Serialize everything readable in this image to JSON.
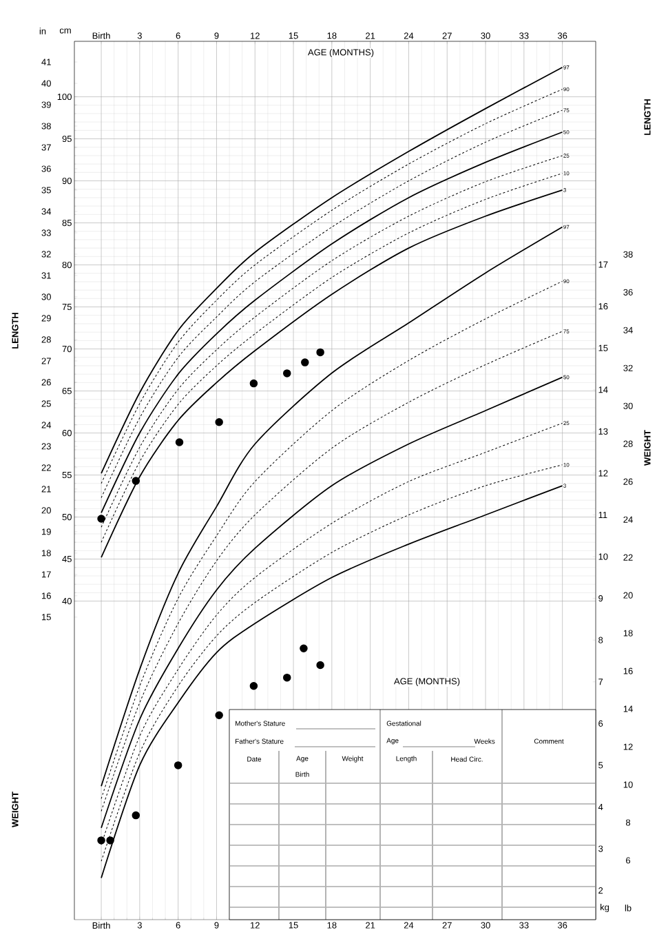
{
  "chart_data": {
    "type": "line",
    "xlabel": "AGE (MONTHS)",
    "ylabel": "LENGTH",
    "y2label": "WEIGHT",
    "x": [
      0,
      3,
      6,
      9,
      12,
      18,
      24,
      30,
      36
    ],
    "xlim": [
      -2.1,
      38.6
    ],
    "xticks": [
      {
        "value": 0,
        "label": "Birth"
      },
      3,
      6,
      9,
      12,
      15,
      18,
      21,
      24,
      27,
      30,
      33,
      36
    ],
    "x2lim": [
      -2.1,
      38.6
    ],
    "x2ticks": [
      {
        "value": 0,
        "label": "Birth"
      },
      3,
      6,
      9,
      12,
      15,
      18,
      21,
      24,
      27,
      30,
      33,
      36
    ],
    "ylim": [
      2.1,
      106.6
    ],
    "yticks": [
      40,
      45,
      50,
      55,
      60,
      65,
      70,
      75,
      80,
      85,
      90,
      95,
      100
    ],
    "y2lim": [
      1.3,
      22.35
    ],
    "y2ticks": [
      2,
      3,
      4,
      5,
      6,
      7,
      8,
      9,
      10,
      11,
      12,
      13,
      14,
      15,
      16,
      17
    ],
    "y3lim": [
      0.83,
      41.97
    ],
    "y3ticks": [
      15,
      16,
      17,
      18,
      19,
      20,
      21,
      22,
      23,
      24,
      25,
      26,
      27,
      28,
      29,
      30,
      31,
      32,
      33,
      34,
      35,
      36,
      37,
      38,
      39,
      40,
      41
    ],
    "grid": true,
    "series": [
      {
        "name": "97",
        "color": "#000000",
        "line_style": "solid",
        "values": [
          55.2,
          64.8,
          72.2,
          77.2,
          81.5,
          88.0,
          93.5,
          98.6,
          103.5
        ]
      },
      {
        "name": "90",
        "color": "#000000",
        "line_style": "dashed",
        "values": [
          54.0,
          63.5,
          70.8,
          75.8,
          80.0,
          86.5,
          92.0,
          96.8,
          100.9
        ]
      },
      {
        "name": "75",
        "color": "#000000",
        "line_style": "dashed",
        "values": [
          52.3,
          61.8,
          69.0,
          73.8,
          78.0,
          84.5,
          90.0,
          94.6,
          98.4
        ]
      },
      {
        "name": "50",
        "color": "#000000",
        "line_style": "solid",
        "values": [
          50.5,
          60.0,
          67.0,
          71.8,
          75.8,
          82.5,
          88.0,
          92.2,
          95.8
        ]
      },
      {
        "name": "25",
        "color": "#000000",
        "line_style": "dashed",
        "values": [
          48.8,
          58.3,
          65.2,
          69.9,
          73.8,
          80.5,
          85.8,
          89.9,
          93.0
        ]
      },
      {
        "name": "10",
        "color": "#000000",
        "line_style": "dashed",
        "values": [
          47.0,
          56.6,
          63.4,
          68.0,
          71.8,
          78.5,
          83.8,
          87.8,
          90.9
        ]
      },
      {
        "name": "3",
        "color": "#000000",
        "line_style": "solid",
        "values": [
          45.2,
          54.8,
          61.5,
          66.0,
          69.8,
          76.5,
          82.0,
          85.8,
          88.9
        ]
      },
      {
        "name": "97",
        "color": "#000000",
        "line_style": "solid",
        "axis": "y2",
        "values": [
          4.5,
          7.3,
          9.6,
          11.2,
          12.7,
          14.4,
          15.6,
          16.8,
          17.9
        ]
      },
      {
        "name": "90",
        "color": "#000000",
        "line_style": "dashed",
        "axis": "y2",
        "values": [
          4.2,
          6.9,
          9.0,
          10.5,
          11.8,
          13.5,
          14.7,
          15.7,
          16.6
        ]
      },
      {
        "name": "75",
        "color": "#000000",
        "line_style": "dashed",
        "axis": "y2",
        "values": [
          3.9,
          6.5,
          8.4,
          9.9,
          11.0,
          12.6,
          13.7,
          14.6,
          15.4
        ]
      },
      {
        "name": "50",
        "color": "#000000",
        "line_style": "solid",
        "axis": "y2",
        "values": [
          3.5,
          6.1,
          7.8,
          9.2,
          10.2,
          11.7,
          12.7,
          13.5,
          14.3
        ]
      },
      {
        "name": "25",
        "color": "#000000",
        "line_style": "dashed",
        "axis": "y2",
        "values": [
          3.1,
          5.7,
          7.3,
          8.6,
          9.5,
          10.8,
          11.8,
          12.5,
          13.2
        ]
      },
      {
        "name": "10",
        "color": "#000000",
        "line_style": "dashed",
        "axis": "y2",
        "values": [
          2.7,
          5.3,
          6.9,
          8.1,
          8.9,
          10.1,
          11.0,
          11.7,
          12.2
        ]
      },
      {
        "name": "3",
        "color": "#000000",
        "line_style": "solid",
        "axis": "y2",
        "values": [
          2.3,
          5.0,
          6.5,
          7.7,
          8.4,
          9.5,
          10.3,
          11.0,
          11.7
        ]
      },
      {
        "type": "scatter",
        "color": "#000000",
        "x": [
          0,
          2.7,
          6.1,
          9.2,
          11.9,
          14.5,
          15.9,
          17.1
        ],
        "values": [
          49.8,
          54.3,
          58.9,
          61.3,
          65.9,
          67.1,
          68.4,
          69.6
        ]
      },
      {
        "type": "scatter",
        "color": "#000000",
        "axis": "y2",
        "x": [
          0,
          0.7,
          2.7,
          6.0,
          9.2,
          11.9,
          14.5,
          15.8,
          17.1
        ],
        "values": [
          3.2,
          3.2,
          3.8,
          5.0,
          6.2,
          6.9,
          7.1,
          7.8,
          7.4
        ]
      }
    ],
    "annotations": [
      "in",
      "cm",
      "kg",
      "lb",
      "LENGTH",
      "WEIGHT",
      "AGE (MONTHS)",
      "Mother's Stature",
      "Father's Stature",
      "Gestational",
      "Age",
      "Weeks",
      "Comment",
      "Date",
      "Age",
      "Weight",
      "Length",
      "Head Circ.",
      "Birth",
      "6",
      "8",
      "10",
      "12",
      "14",
      "16",
      "18",
      "20",
      "22",
      "24",
      "26",
      "28",
      "30",
      "32",
      "34",
      "36",
      "38"
    ]
  }
}
